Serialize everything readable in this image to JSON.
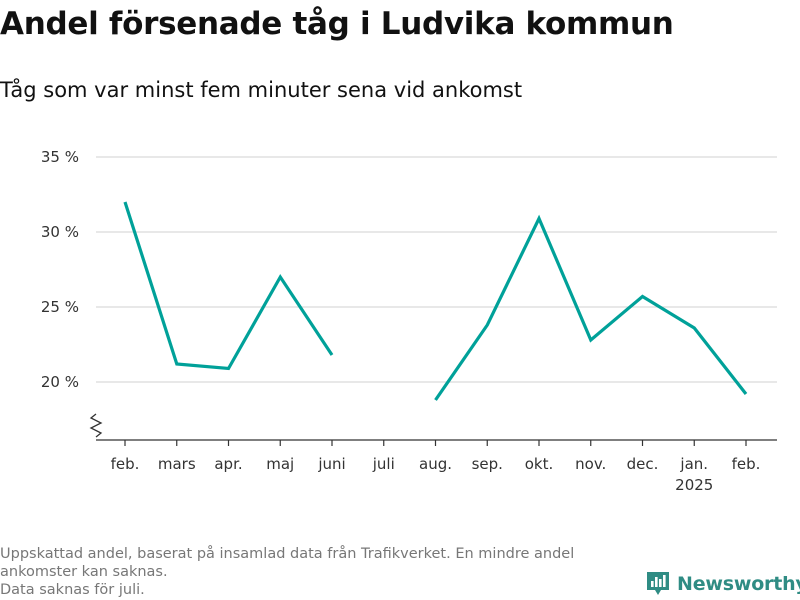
{
  "header": {
    "title": "Andel försenade tåg i Ludvika kommun",
    "subtitle": "Tåg som var minst fem minuter sena vid ankomst"
  },
  "footnote": {
    "line1": "Uppskattad andel, baserat på insamlad data från Trafikverket. En mindre andel",
    "line2": "ankomster kan saknas.",
    "line3": "Data saknas för juli."
  },
  "brand": {
    "name": "Newsworthy",
    "icon": "bar-chart-logo-icon",
    "color": "#2f8c84"
  },
  "chart_data": {
    "type": "line",
    "title": "Andel försenade tåg i Ludvika kommun",
    "subtitle": "Tåg som var minst fem minuter sena vid ankomst",
    "categories": [
      "feb.",
      "mars",
      "apr.",
      "maj",
      "juni",
      "juli",
      "aug.",
      "sep.",
      "okt.",
      "nov.",
      "dec.",
      "jan.",
      "feb."
    ],
    "year_label": "2025",
    "year_label_under": "jan.",
    "series": [
      {
        "values": [
          32.0,
          21.2,
          20.9,
          27.0,
          21.8,
          null,
          18.8,
          23.8,
          30.9,
          22.8,
          25.7,
          23.6,
          19.2
        ],
        "color": "#00a199"
      }
    ],
    "y_ticks": [
      20,
      25,
      30,
      35
    ],
    "y_tick_labels": [
      "20 %",
      "25 %",
      "30 %",
      "35 %"
    ],
    "ylim": [
      16,
      35
    ],
    "y_axis_break": true,
    "grid": true,
    "legend": "none"
  }
}
